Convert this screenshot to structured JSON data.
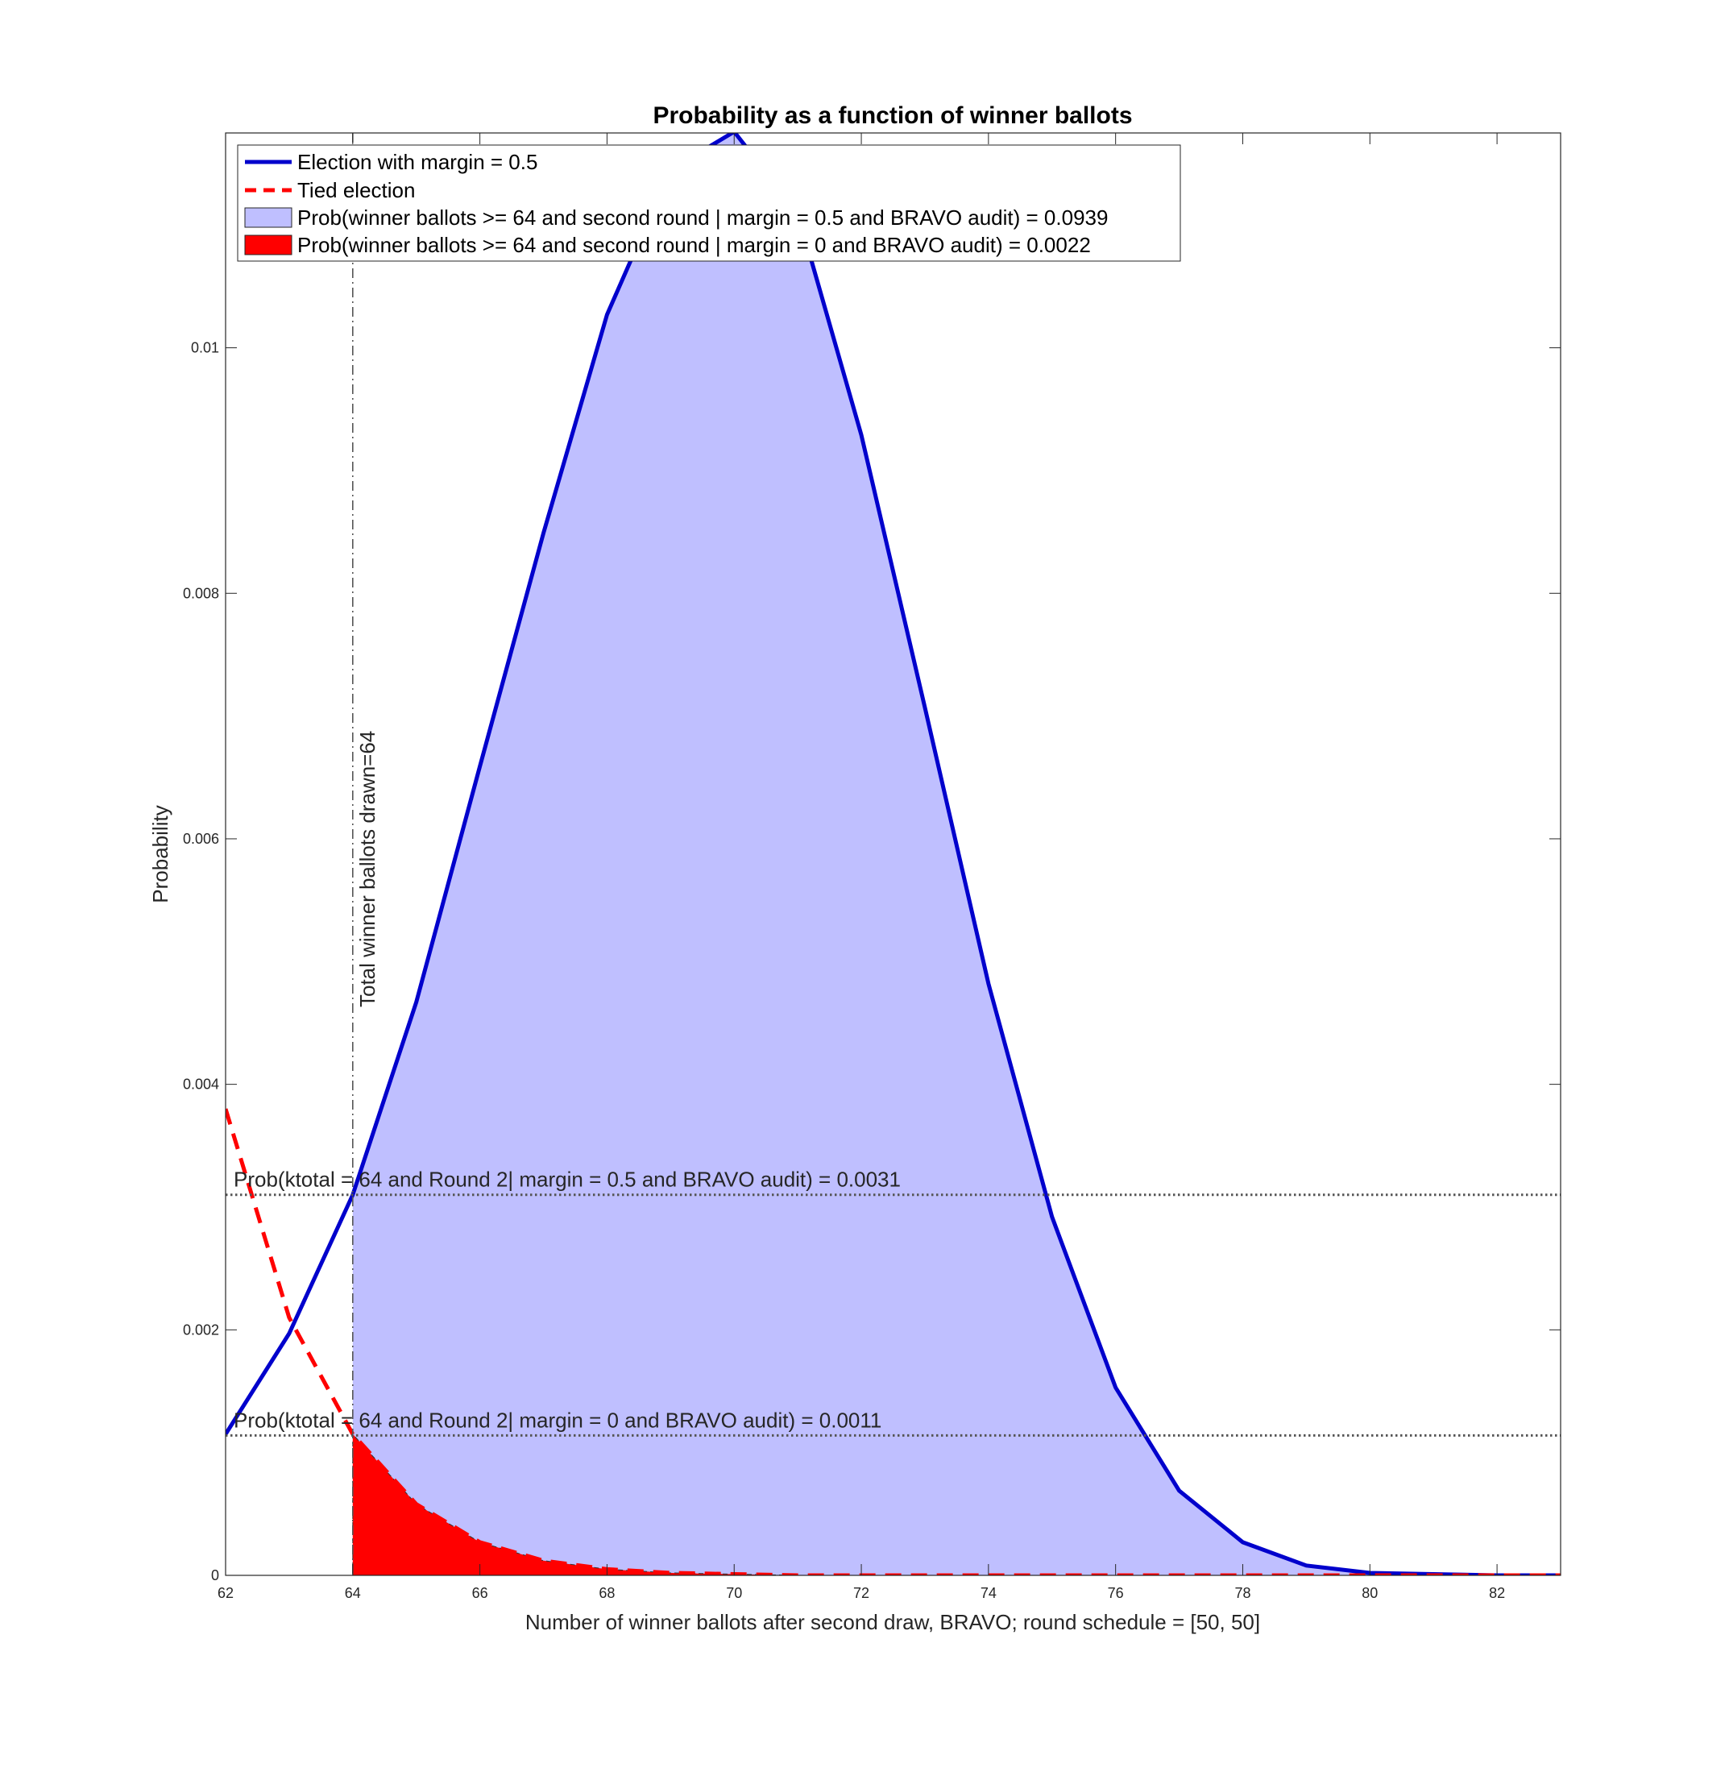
{
  "chart_data": {
    "type": "area",
    "title": "Probability as a function of winner ballots",
    "xlabel": "Number of winner ballots after second draw, BRAVO; round schedule = [50, 50]",
    "ylabel": "Probability",
    "xlim": [
      62,
      83
    ],
    "ylim": [
      0,
      0.01175
    ],
    "x_ticks": [
      62,
      64,
      66,
      68,
      70,
      72,
      74,
      76,
      78,
      80,
      82
    ],
    "x_tick_labels": [
      "62",
      "64",
      "66",
      "68",
      "70",
      "72",
      "74",
      "76",
      "78",
      "80",
      "82"
    ],
    "y_ticks": [
      0,
      0.002,
      0.004,
      0.006,
      0.008,
      0.01
    ],
    "y_tick_labels": [
      "0",
      "0.002",
      "0.004",
      "0.006",
      "0.008",
      "0.01"
    ],
    "grid": false,
    "legend_position": "top-left",
    "x": [
      62,
      63,
      64,
      65,
      66,
      67,
      68,
      69,
      70,
      71,
      72,
      73,
      74,
      75,
      76,
      77,
      78,
      79,
      80,
      81,
      82,
      83
    ],
    "series": [
      {
        "name": "Election with margin = 0.5",
        "style": "solid",
        "color": "#0000cc",
        "values": [
          0.00115,
          0.00197,
          0.0031,
          0.00467,
          0.00659,
          0.00849,
          0.01027,
          0.01145,
          0.01176,
          0.0111,
          0.00929,
          0.00707,
          0.00482,
          0.00292,
          0.00153,
          0.00069,
          0.00027,
          8e-05,
          2e-05,
          1e-05,
          0.0,
          0.0
        ]
      },
      {
        "name": "Tied election",
        "style": "dashed",
        "color": "#ff0000",
        "values": [
          0.0038,
          0.0021,
          0.00115,
          0.00058,
          0.00027,
          0.00012,
          5e-05,
          2e-05,
          1e-05,
          0.0,
          0.0,
          0.0,
          0.0,
          0.0,
          0.0,
          0.0,
          0.0,
          0.0,
          0.0,
          0.0,
          0.0,
          0.0
        ]
      }
    ],
    "filled_areas": [
      {
        "name": "Prob(winner ballots >= 64 and second round | margin = 0.5 and BRAVO audit) = 0.0939",
        "color": "#bfbfff",
        "from_x": 64,
        "series_index": 0
      },
      {
        "name": "Prob(winner ballots >= 64  and second round | margin = 0 and BRAVO audit) = 0.0022",
        "color": "#ff0000",
        "from_x": 64,
        "series_index": 1
      }
    ],
    "vertical_line": {
      "x": 64,
      "label": "Total winner ballots drawn=64"
    },
    "horizontal_lines": [
      {
        "y": 0.0031,
        "label": "Prob(ktotal = 64 and Round 2| margin = 0.5 and BRAVO audit) = 0.0031"
      },
      {
        "y": 0.00114,
        "label": "Prob(ktotal = 64 and Round 2| margin = 0 and BRAVO audit) = 0.0011"
      }
    ]
  }
}
